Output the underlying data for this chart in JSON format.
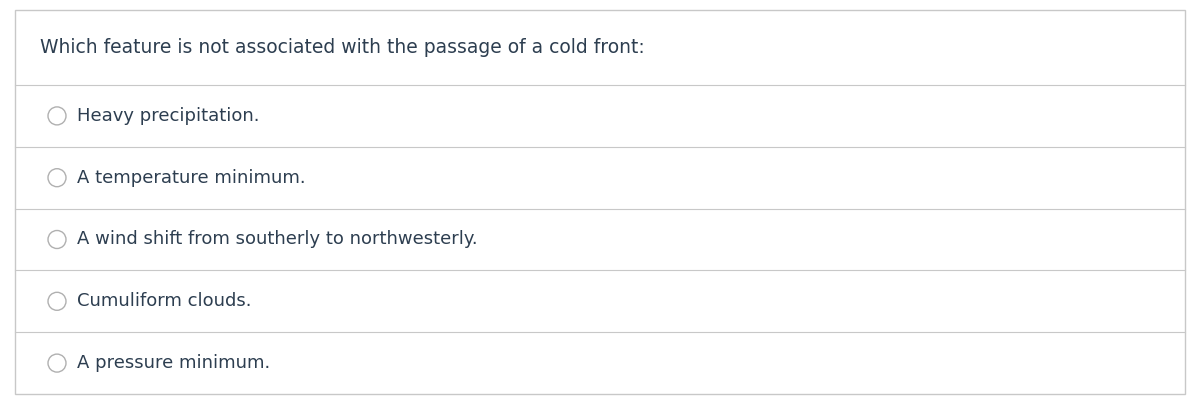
{
  "question": "Which feature is not associated with the passage of a cold front:",
  "options": [
    "Heavy precipitation.",
    "A temperature minimum.",
    "A wind shift from southerly to northwesterly.",
    "Cumuliform clouds.",
    "A pressure minimum."
  ],
  "background_color": "#ffffff",
  "border_color": "#c8c8c8",
  "text_color": "#2d3e50",
  "divider_color": "#c8c8c8",
  "question_fontsize": 13.5,
  "option_fontsize": 13,
  "radio_color": "#b0b0b0",
  "radio_fill": "#ffffff",
  "fig_width": 12.0,
  "fig_height": 4.04,
  "dpi": 100
}
